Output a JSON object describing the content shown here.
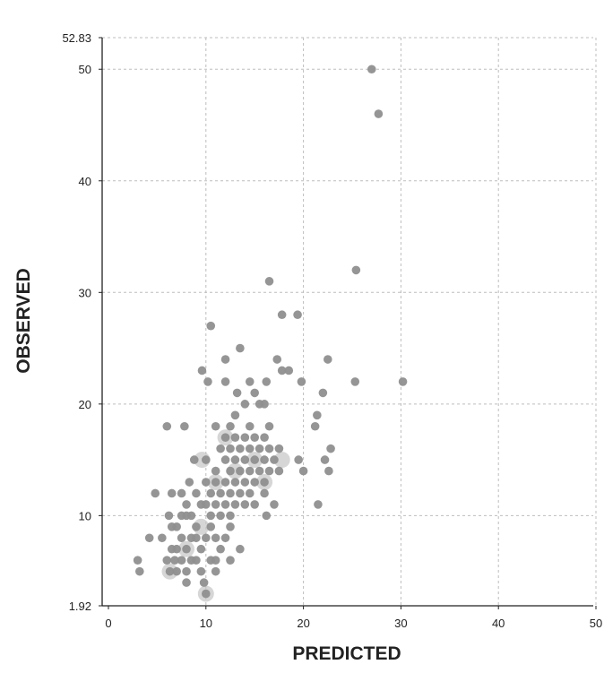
{
  "chart_data": {
    "type": "scatter",
    "title": "",
    "xlabel": "PREDICTED",
    "ylabel": "OBSERVED",
    "xlim": [
      0,
      50
    ],
    "ylim": [
      1.92,
      52.83
    ],
    "x_ticks": [
      "0",
      "10",
      "20",
      "30",
      "40",
      "50"
    ],
    "y_ticks": [
      "1.92",
      "10",
      "20",
      "30",
      "40",
      "50",
      "52.83"
    ],
    "grid": true,
    "point_color": "#8f8f8f",
    "halo_color": "#c4c4c4",
    "points": [
      [
        27,
        50
      ],
      [
        27.7,
        46
      ],
      [
        25.4,
        32
      ],
      [
        16.5,
        31
      ],
      [
        17.8,
        28
      ],
      [
        19.4,
        28
      ],
      [
        10.5,
        27
      ],
      [
        13.5,
        25
      ],
      [
        12,
        24
      ],
      [
        17.3,
        24
      ],
      [
        22.5,
        24
      ],
      [
        9.6,
        23
      ],
      [
        17.8,
        23
      ],
      [
        18.5,
        23
      ],
      [
        10.2,
        22
      ],
      [
        12,
        22
      ],
      [
        14.5,
        22
      ],
      [
        16.2,
        22
      ],
      [
        19.8,
        22
      ],
      [
        25.3,
        22
      ],
      [
        30.2,
        22
      ],
      [
        13.2,
        21
      ],
      [
        15,
        21
      ],
      [
        22,
        21
      ],
      [
        14,
        20
      ],
      [
        15.5,
        20
      ],
      [
        16,
        20
      ],
      [
        21.4,
        19
      ],
      [
        13,
        19
      ],
      [
        6,
        18
      ],
      [
        7.8,
        18
      ],
      [
        11,
        18
      ],
      [
        21.2,
        18
      ],
      [
        22.8,
        16
      ],
      [
        19.5,
        15
      ],
      [
        22.2,
        15
      ],
      [
        22.6,
        14
      ],
      [
        20,
        14
      ],
      [
        21.5,
        11
      ],
      [
        17,
        11
      ],
      [
        16.2,
        10
      ],
      [
        4.2,
        8
      ],
      [
        3,
        6
      ],
      [
        3.2,
        5
      ],
      [
        4.8,
        12
      ],
      [
        5.5,
        8
      ],
      [
        6,
        6
      ],
      [
        6.3,
        5
      ],
      [
        8,
        4
      ],
      [
        10,
        3
      ],
      [
        9.8,
        4
      ],
      [
        11,
        5
      ],
      [
        12.5,
        6
      ],
      [
        13.5,
        7
      ],
      [
        10,
        15
      ],
      [
        11,
        14
      ],
      [
        11,
        13
      ],
      [
        11.5,
        12
      ],
      [
        12,
        13
      ],
      [
        12,
        15
      ],
      [
        12.5,
        12
      ],
      [
        12.5,
        14
      ],
      [
        12.5,
        16
      ],
      [
        13,
        13
      ],
      [
        13,
        15
      ],
      [
        13.5,
        14
      ],
      [
        13.5,
        16
      ],
      [
        13.5,
        12
      ],
      [
        14,
        13
      ],
      [
        14,
        15
      ],
      [
        14,
        17
      ],
      [
        14.5,
        14
      ],
      [
        14.5,
        12
      ],
      [
        14.5,
        16
      ],
      [
        15,
        13
      ],
      [
        15,
        15
      ],
      [
        15.5,
        14
      ],
      [
        15.5,
        16
      ],
      [
        16,
        13
      ],
      [
        16,
        15
      ],
      [
        16.5,
        14
      ],
      [
        16.5,
        16
      ],
      [
        17,
        15
      ],
      [
        17.5,
        14
      ],
      [
        17.5,
        16
      ],
      [
        11.5,
        16
      ],
      [
        12,
        17
      ],
      [
        13,
        17
      ],
      [
        15,
        17
      ],
      [
        16,
        17
      ],
      [
        12.5,
        18
      ],
      [
        14.5,
        18
      ],
      [
        16.5,
        18
      ],
      [
        12,
        11
      ],
      [
        13,
        11
      ],
      [
        14,
        11
      ],
      [
        15,
        11
      ],
      [
        16,
        12
      ],
      [
        11,
        11
      ],
      [
        11.5,
        10
      ],
      [
        12.5,
        10
      ],
      [
        10.5,
        12
      ],
      [
        10,
        13
      ],
      [
        10,
        11
      ],
      [
        10.5,
        10
      ],
      [
        9,
        12
      ],
      [
        9.5,
        11
      ],
      [
        8.5,
        10
      ],
      [
        9,
        9
      ],
      [
        8,
        10
      ],
      [
        8,
        11
      ],
      [
        7,
        9
      ],
      [
        7.5,
        8
      ],
      [
        7,
        7
      ],
      [
        8,
        7
      ],
      [
        8.5,
        8
      ],
      [
        9,
        8
      ],
      [
        9.5,
        7
      ],
      [
        10,
        8
      ],
      [
        10.5,
        9
      ],
      [
        11,
        8
      ],
      [
        11.5,
        7
      ],
      [
        12,
        8
      ],
      [
        12.5,
        9
      ],
      [
        6.5,
        9
      ],
      [
        6.5,
        7
      ],
      [
        6.8,
        6
      ],
      [
        7.5,
        6
      ],
      [
        8,
        5
      ],
      [
        9,
        6
      ],
      [
        9.5,
        5
      ],
      [
        10.5,
        6
      ],
      [
        11,
        6
      ],
      [
        7,
        5
      ],
      [
        8.5,
        6
      ],
      [
        7.5,
        10
      ],
      [
        6.2,
        10
      ],
      [
        6.5,
        12
      ],
      [
        7.5,
        12
      ],
      [
        8.3,
        13
      ],
      [
        8.8,
        15
      ]
    ],
    "halos": [
      [
        9.6,
        15
      ],
      [
        17.8,
        15
      ],
      [
        10,
        3
      ],
      [
        6.3,
        5
      ],
      [
        8,
        7
      ],
      [
        9.5,
        9
      ],
      [
        11,
        13
      ],
      [
        13,
        14
      ],
      [
        15,
        15
      ],
      [
        12,
        17
      ],
      [
        16,
        13
      ]
    ]
  }
}
